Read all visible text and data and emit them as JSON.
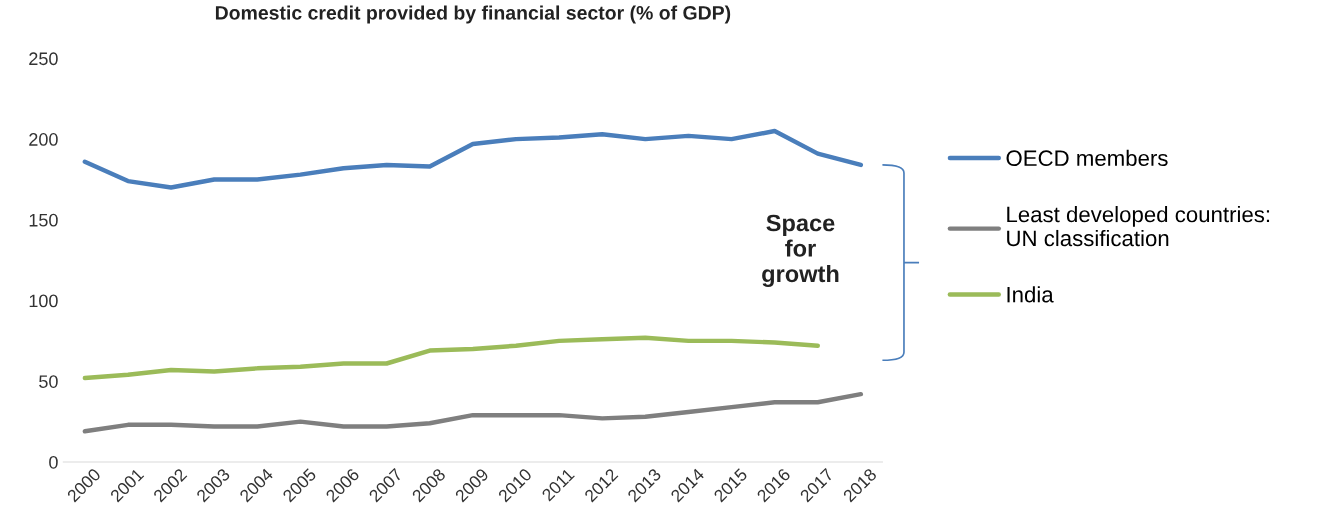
{
  "chart_data": {
    "type": "line",
    "title": "Domestic credit provided by financial sector (% of GDP)",
    "categories": [
      "2000",
      "2001",
      "2002",
      "2003",
      "2004",
      "2005",
      "2006",
      "2007",
      "2008",
      "2009",
      "2010",
      "2011",
      "2012",
      "2013",
      "2014",
      "2015",
      "2016",
      "2017",
      "2018"
    ],
    "series": [
      {
        "name": "OECD members",
        "color": "#4a7ebb",
        "values": [
          186,
          174,
          170,
          175,
          175,
          178,
          182,
          184,
          183,
          197,
          200,
          201,
          203,
          200,
          202,
          200,
          205,
          191,
          184
        ]
      },
      {
        "name": "Least developed countries:\nUN classification",
        "color": "#7f7f7f",
        "values": [
          19,
          23,
          23,
          22,
          22,
          25,
          22,
          22,
          24,
          29,
          29,
          29,
          27,
          28,
          31,
          34,
          37,
          37,
          42
        ]
      },
      {
        "name": "India",
        "color": "#9bbb59",
        "values": [
          52,
          54,
          57,
          56,
          58,
          59,
          61,
          61,
          69,
          70,
          72,
          75,
          76,
          77,
          75,
          75,
          74,
          72,
          null
        ]
      }
    ],
    "ylim": [
      0,
      250
    ],
    "yticks": [
      0,
      50,
      100,
      150,
      200,
      250
    ],
    "annotations": [
      "Space\nfor\ngrowth"
    ],
    "legend": "right",
    "grid": false,
    "marker": "none",
    "line_style": "solid"
  }
}
